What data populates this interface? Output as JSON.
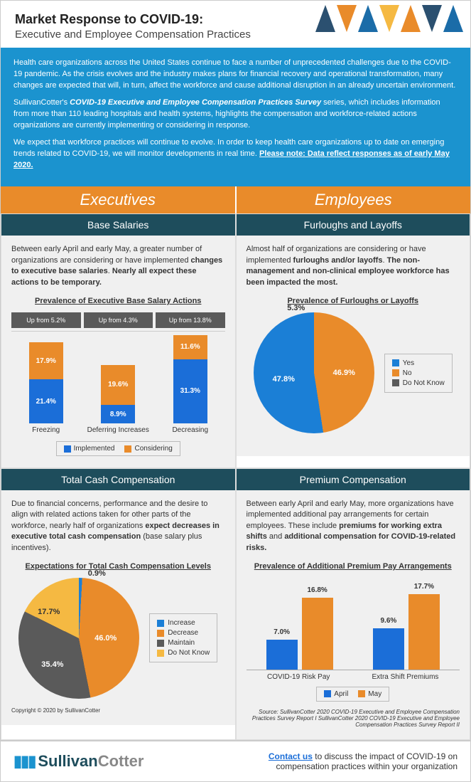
{
  "header": {
    "title": "Market Response to COVID-19:",
    "subtitle": "Executive and Employee Compensation Practices"
  },
  "intro": {
    "p1": "Health care organizations across the United States continue to face a number of unprecedented challenges due to the COVID-19 pandemic. As the crisis evolves and the industry makes plans for financial recovery and operational transformation, many changes are expected that will, in turn, affect the workforce and cause additional disruption in an already uncertain environment.",
    "p2a": "SullivanCotter's ",
    "p2b": "COVID-19 Executive and Employee Compensation Practices Survey",
    "p2c": " series, which includes information from more than 110 leading hospitals and health systems, highlights the compensation and workforce-related actions organizations are currently implementing or considering in response.",
    "p3": "We expect that workforce practices will continue to evolve. In order to keep health care organizations up to date on emerging trends related to COVID-19, we will monitor developments in real time.  ",
    "note": "Please note: Data reflect responses as of early May 2020."
  },
  "columns": {
    "left": "Executives",
    "right": "Employees"
  },
  "exec_base": {
    "title": "Base Salaries",
    "text_a": "Between early April and early May, a greater number of organizations are considering or have implemented ",
    "text_b": "changes to executive base salaries",
    "text_c": ". ",
    "text_d": "Nearly all expect these actions to be temporary.",
    "chart_title": "Prevalence of Executive Base Salary Actions",
    "chart": {
      "type": "stacked_bar",
      "categories": [
        "Freezing",
        "Deferring Increases",
        "Decreasing"
      ],
      "header_labels": [
        "Up from 5.2%",
        "Up from 4.3%",
        "Up from 13.8%"
      ],
      "series": [
        {
          "name": "Implemented",
          "color": "#1b6ed8",
          "values": [
            21.4,
            8.9,
            31.3
          ]
        },
        {
          "name": "Considering",
          "color": "#e98b2a",
          "values": [
            17.9,
            19.6,
            11.6
          ]
        }
      ],
      "y_max": 45,
      "header_bg": "#5a5a5a",
      "label_color": "#ffffff",
      "label_fontsize": 10
    }
  },
  "emp_furlough": {
    "title": "Furloughs and Layoffs",
    "text_a": "Almost half of organizations are considering or have implemented ",
    "text_b": "furloughs and/or layoffs",
    "text_c": ". ",
    "text_d": "The non-management and non-clinical employee workforce has been impacted the most.",
    "chart_title": "Prevalence of Furloughs or Layoffs",
    "chart": {
      "type": "pie",
      "slices": [
        {
          "label": "Yes",
          "value": 46.9,
          "color": "#1b7fd6"
        },
        {
          "label": "No",
          "value": 47.8,
          "color": "#e98b2a"
        },
        {
          "label": "Do Not Know",
          "value": 5.3,
          "color": "#5a5a5a"
        }
      ],
      "label_fontsize": 11,
      "label_color_inside": "#ffffff",
      "label_outside": "5.3%"
    }
  },
  "exec_total": {
    "title": "Total Cash Compensation",
    "text_a": "Due to financial concerns, performance and the desire to align with related actions taken for other parts of the workforce, nearly half of organizations ",
    "text_b": "expect decreases in executive total cash compensation",
    "text_c": " (base salary plus incentives).",
    "chart_title": "Expectations for Total Cash Compensation Levels",
    "chart": {
      "type": "pie",
      "slices": [
        {
          "label": "Increase",
          "value": 0.9,
          "color": "#1b7fd6"
        },
        {
          "label": "Decrease",
          "value": 46.0,
          "color": "#e98b2a"
        },
        {
          "label": "Maintain",
          "value": 35.4,
          "color": "#5a5a5a"
        },
        {
          "label": "Do Not Know",
          "value": 17.7,
          "color": "#f5b942"
        }
      ],
      "label_outside": "0.9%"
    }
  },
  "emp_premium": {
    "title": "Premium Compensation",
    "text_a": "Between early April and early May, more organizations have implemented additional pay arrangements for certain employees. These include ",
    "text_b": "premiums for working extra shifts",
    "text_c": " and ",
    "text_d": "additional compensation for COVID-19-related risks.",
    "chart_title": "Prevalence of Additional Premium Pay Arrangements",
    "chart": {
      "type": "grouped_bar",
      "categories": [
        "COVID-19 Risk Pay",
        "Extra Shift Premiums"
      ],
      "series": [
        {
          "name": "April",
          "color": "#1b6ed8",
          "values": [
            7.0,
            9.6
          ]
        },
        {
          "name": "May",
          "color": "#e98b2a",
          "values": [
            16.8,
            17.7
          ]
        }
      ],
      "y_max": 20,
      "label_fontsize": 10
    }
  },
  "source": "Source: SullivanCotter 2020 COVID-19 Executive and Employee Compensation Practices Survey Report I SullivanCotter 2020 COVID-19 Executive and Employee Compensation Practices Survey Report II",
  "copyright": "Copyright © 2020 by SullivanCotter",
  "footer": {
    "logo_a": "Sullivan",
    "logo_b": "Cotter",
    "contact_link": "Contact us",
    "contact_text": " to discuss the impact of COVID-19 on compensation practices within your organization"
  },
  "colors": {
    "blue": "#1b6ed8",
    "orange": "#e98b2a",
    "gray": "#5a5a5a",
    "yellow": "#f5b942",
    "teal_header": "#1e4d5c",
    "intro_bg": "#1b93cf",
    "cell_bg": "#f0f0f0"
  }
}
